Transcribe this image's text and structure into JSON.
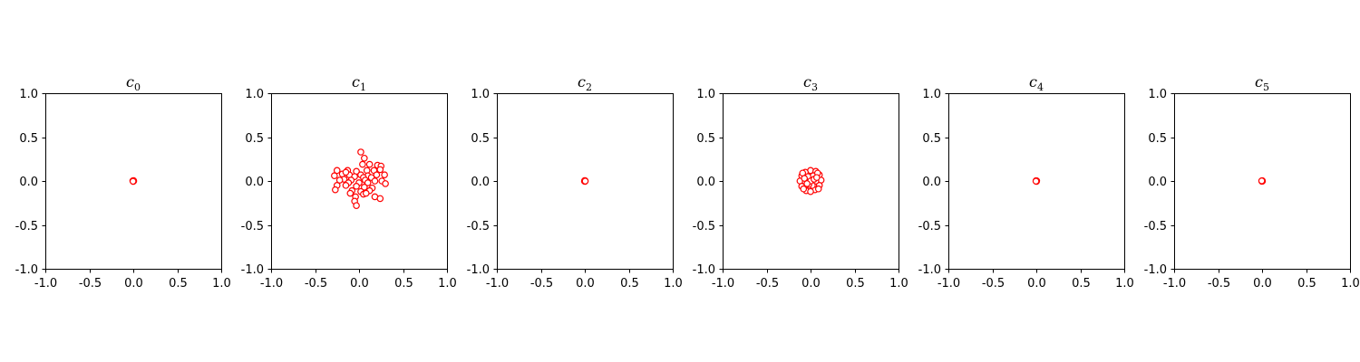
{
  "chart_data": [
    {
      "type": "scatter",
      "title": {
        "base": "c",
        "sub": "0"
      },
      "xlim": [
        -1.0,
        1.0
      ],
      "ylim": [
        -1.0,
        1.0
      ],
      "xticks": [
        "-1.0",
        "-0.5",
        "0.0",
        "0.5",
        "1.0"
      ],
      "yticks": [
        "-1.0",
        "-0.5",
        "0.0",
        "0.5",
        "1.0"
      ],
      "grid": false,
      "marker_color": "#ff0000",
      "points": [
        [
          0.0,
          0.0
        ],
        [
          0.005,
          0.0
        ],
        [
          -0.005,
          0.002
        ],
        [
          0.0,
          -0.004
        ],
        [
          0.003,
          0.004
        ],
        [
          -0.003,
          -0.003
        ]
      ]
    },
    {
      "type": "scatter",
      "title": {
        "base": "c",
        "sub": "1"
      },
      "xlim": [
        -1.0,
        1.0
      ],
      "ylim": [
        -1.0,
        1.0
      ],
      "xticks": [
        "-1.0",
        "-0.5",
        "0.0",
        "0.5",
        "1.0"
      ],
      "yticks": [
        "-1.0",
        "-0.5",
        "0.0",
        "0.5",
        "1.0"
      ],
      "grid": false,
      "marker_color": "#ff0000",
      "points": [
        [
          0.02,
          0.33
        ],
        [
          0.06,
          0.26
        ],
        [
          0.04,
          0.19
        ],
        [
          0.12,
          0.19
        ],
        [
          0.21,
          0.18
        ],
        [
          0.25,
          0.17
        ],
        [
          -0.13,
          0.12
        ],
        [
          -0.25,
          0.12
        ],
        [
          -0.03,
          0.11
        ],
        [
          0.09,
          0.12
        ],
        [
          0.17,
          0.12
        ],
        [
          0.24,
          0.13
        ],
        [
          -0.19,
          0.08
        ],
        [
          -0.11,
          0.07
        ],
        [
          0.02,
          0.07
        ],
        [
          0.1,
          0.06
        ],
        [
          0.2,
          0.07
        ],
        [
          0.29,
          0.07
        ],
        [
          -0.28,
          0.06
        ],
        [
          -0.05,
          0.05
        ],
        [
          0.05,
          0.04
        ],
        [
          0.14,
          0.04
        ],
        [
          -0.17,
          0.02
        ],
        [
          -0.22,
          0.01
        ],
        [
          -0.09,
          0.01
        ],
        [
          0.07,
          0.01
        ],
        [
          0.18,
          0.0
        ],
        [
          0.26,
          0.0
        ],
        [
          -0.12,
          -0.02
        ],
        [
          0.0,
          -0.02
        ],
        [
          0.1,
          -0.02
        ],
        [
          0.3,
          -0.03
        ],
        [
          -0.25,
          -0.05
        ],
        [
          -0.15,
          -0.05
        ],
        [
          -0.03,
          -0.06
        ],
        [
          0.06,
          -0.07
        ],
        [
          0.15,
          -0.08
        ],
        [
          -0.27,
          -0.1
        ],
        [
          -0.08,
          -0.11
        ],
        [
          0.02,
          -0.12
        ],
        [
          0.12,
          -0.11
        ],
        [
          -0.1,
          -0.14
        ],
        [
          0.05,
          -0.15
        ],
        [
          -0.04,
          -0.18
        ],
        [
          0.18,
          -0.18
        ],
        [
          0.24,
          -0.2
        ],
        [
          -0.05,
          -0.23
        ],
        [
          -0.03,
          -0.28
        ],
        [
          0.08,
          -0.14
        ],
        [
          -0.15,
          0.1
        ]
      ]
    },
    {
      "type": "scatter",
      "title": {
        "base": "c",
        "sub": "2"
      },
      "xlim": [
        -1.0,
        1.0
      ],
      "ylim": [
        -1.0,
        1.0
      ],
      "xticks": [
        "-1.0",
        "-0.5",
        "0.0",
        "0.5",
        "1.0"
      ],
      "yticks": [
        "-1.0",
        "-0.5",
        "0.0",
        "0.5",
        "1.0"
      ],
      "grid": false,
      "marker_color": "#ff0000",
      "points": [
        [
          0.0,
          0.0
        ],
        [
          0.004,
          0.003
        ],
        [
          -0.004,
          -0.002
        ],
        [
          0.002,
          -0.004
        ],
        [
          -0.002,
          0.004
        ],
        [
          0.005,
          -0.001
        ]
      ]
    },
    {
      "type": "scatter",
      "title": {
        "base": "c",
        "sub": "3"
      },
      "xlim": [
        -1.0,
        1.0
      ],
      "ylim": [
        -1.0,
        1.0
      ],
      "xticks": [
        "-1.0",
        "-0.5",
        "0.0",
        "0.5",
        "1.0"
      ],
      "yticks": [
        "-1.0",
        "-0.5",
        "0.0",
        "0.5",
        "1.0"
      ],
      "grid": false,
      "marker_color": "#ff0000",
      "points": [
        [
          0.0,
          0.12
        ],
        [
          0.06,
          0.11
        ],
        [
          -0.06,
          0.1
        ],
        [
          0.1,
          0.07
        ],
        [
          -0.1,
          0.06
        ],
        [
          0.12,
          0.01
        ],
        [
          -0.12,
          0.0
        ],
        [
          0.1,
          -0.05
        ],
        [
          -0.1,
          -0.06
        ],
        [
          0.05,
          -0.1
        ],
        [
          -0.05,
          -0.11
        ],
        [
          0.0,
          -0.12
        ],
        [
          0.03,
          0.06
        ],
        [
          -0.03,
          0.05
        ],
        [
          0.06,
          0.0
        ],
        [
          -0.06,
          -0.01
        ],
        [
          0.02,
          -0.05
        ],
        [
          -0.02,
          -0.04
        ],
        [
          0.0,
          0.0
        ],
        [
          0.08,
          0.09
        ],
        [
          -0.08,
          -0.09
        ],
        [
          0.09,
          -0.09
        ],
        [
          -0.09,
          0.09
        ],
        [
          0.04,
          0.02
        ],
        [
          -0.04,
          -0.03
        ],
        [
          0.07,
          0.04
        ],
        [
          -0.07,
          0.03
        ]
      ]
    },
    {
      "type": "scatter",
      "title": {
        "base": "c",
        "sub": "4"
      },
      "xlim": [
        -1.0,
        1.0
      ],
      "ylim": [
        -1.0,
        1.0
      ],
      "xticks": [
        "-1.0",
        "-0.5",
        "0.0",
        "0.5",
        "1.0"
      ],
      "yticks": [
        "-1.0",
        "-0.5",
        "0.0",
        "0.5",
        "1.0"
      ],
      "grid": false,
      "marker_color": "#ff0000",
      "points": [
        [
          0.0,
          0.0
        ],
        [
          0.004,
          0.002
        ],
        [
          -0.003,
          0.003
        ],
        [
          0.002,
          -0.004
        ],
        [
          -0.004,
          -0.002
        ]
      ]
    },
    {
      "type": "scatter",
      "title": {
        "base": "c",
        "sub": "5"
      },
      "xlim": [
        -1.0,
        1.0
      ],
      "ylim": [
        -1.0,
        1.0
      ],
      "xticks": [
        "-1.0",
        "-0.5",
        "0.0",
        "0.5",
        "1.0"
      ],
      "yticks": [
        "-1.0",
        "-0.5",
        "0.0",
        "0.5",
        "1.0"
      ],
      "grid": false,
      "marker_color": "#ff0000",
      "points": [
        [
          0.0,
          0.0
        ],
        [
          0.003,
          0.003
        ],
        [
          -0.003,
          -0.003
        ],
        [
          0.004,
          -0.002
        ],
        [
          -0.004,
          0.002
        ]
      ]
    }
  ]
}
